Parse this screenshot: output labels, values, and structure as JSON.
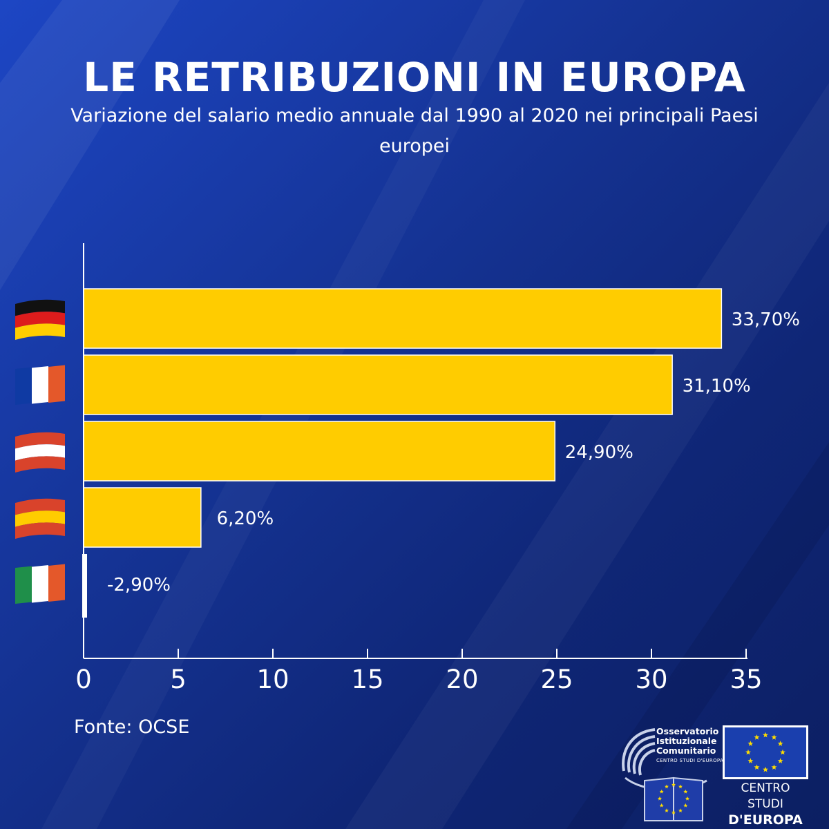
{
  "header": {
    "title": "LE RETRIBUZIONI IN EUROPA",
    "subtitle": "Variazione del salario medio annuale dal 1990 al 2020 nei principali Paesi europei"
  },
  "chart_data": {
    "type": "bar",
    "orientation": "horizontal",
    "categories": [
      "Germania",
      "Francia",
      "Austria",
      "Spagna",
      "Italia"
    ],
    "category_icons": [
      "flag-germany-icon",
      "flag-france-icon",
      "flag-austria-icon",
      "flag-spain-icon",
      "flag-italy-icon"
    ],
    "values": [
      33.7,
      31.1,
      24.9,
      6.2,
      -2.9
    ],
    "value_labels": [
      "33,70%",
      "31,10%",
      "24,90%",
      "6,20%",
      "-2,90%"
    ],
    "x_ticks": [
      0,
      5,
      10,
      15,
      20,
      25,
      30,
      35
    ],
    "xlim": [
      0,
      35
    ],
    "grid": false,
    "bar_color": "#ffcc00",
    "negative_bar_color": "#ffffff"
  },
  "footer": {
    "source": "Fonte: OCSE",
    "logo_oic": {
      "line1": "Osservatorio",
      "line2": "Istituzionale",
      "line3": "Comunitario",
      "sub": "CENTRO STUDI D'EUROPA"
    },
    "logo_csde": {
      "line1": "CENTRO STUDI",
      "line2": "D'EUROPA"
    }
  },
  "colors": {
    "background": "#14318f",
    "bar": "#ffcc00",
    "text": "#ffffff",
    "eu_star": "#ffdd00"
  }
}
